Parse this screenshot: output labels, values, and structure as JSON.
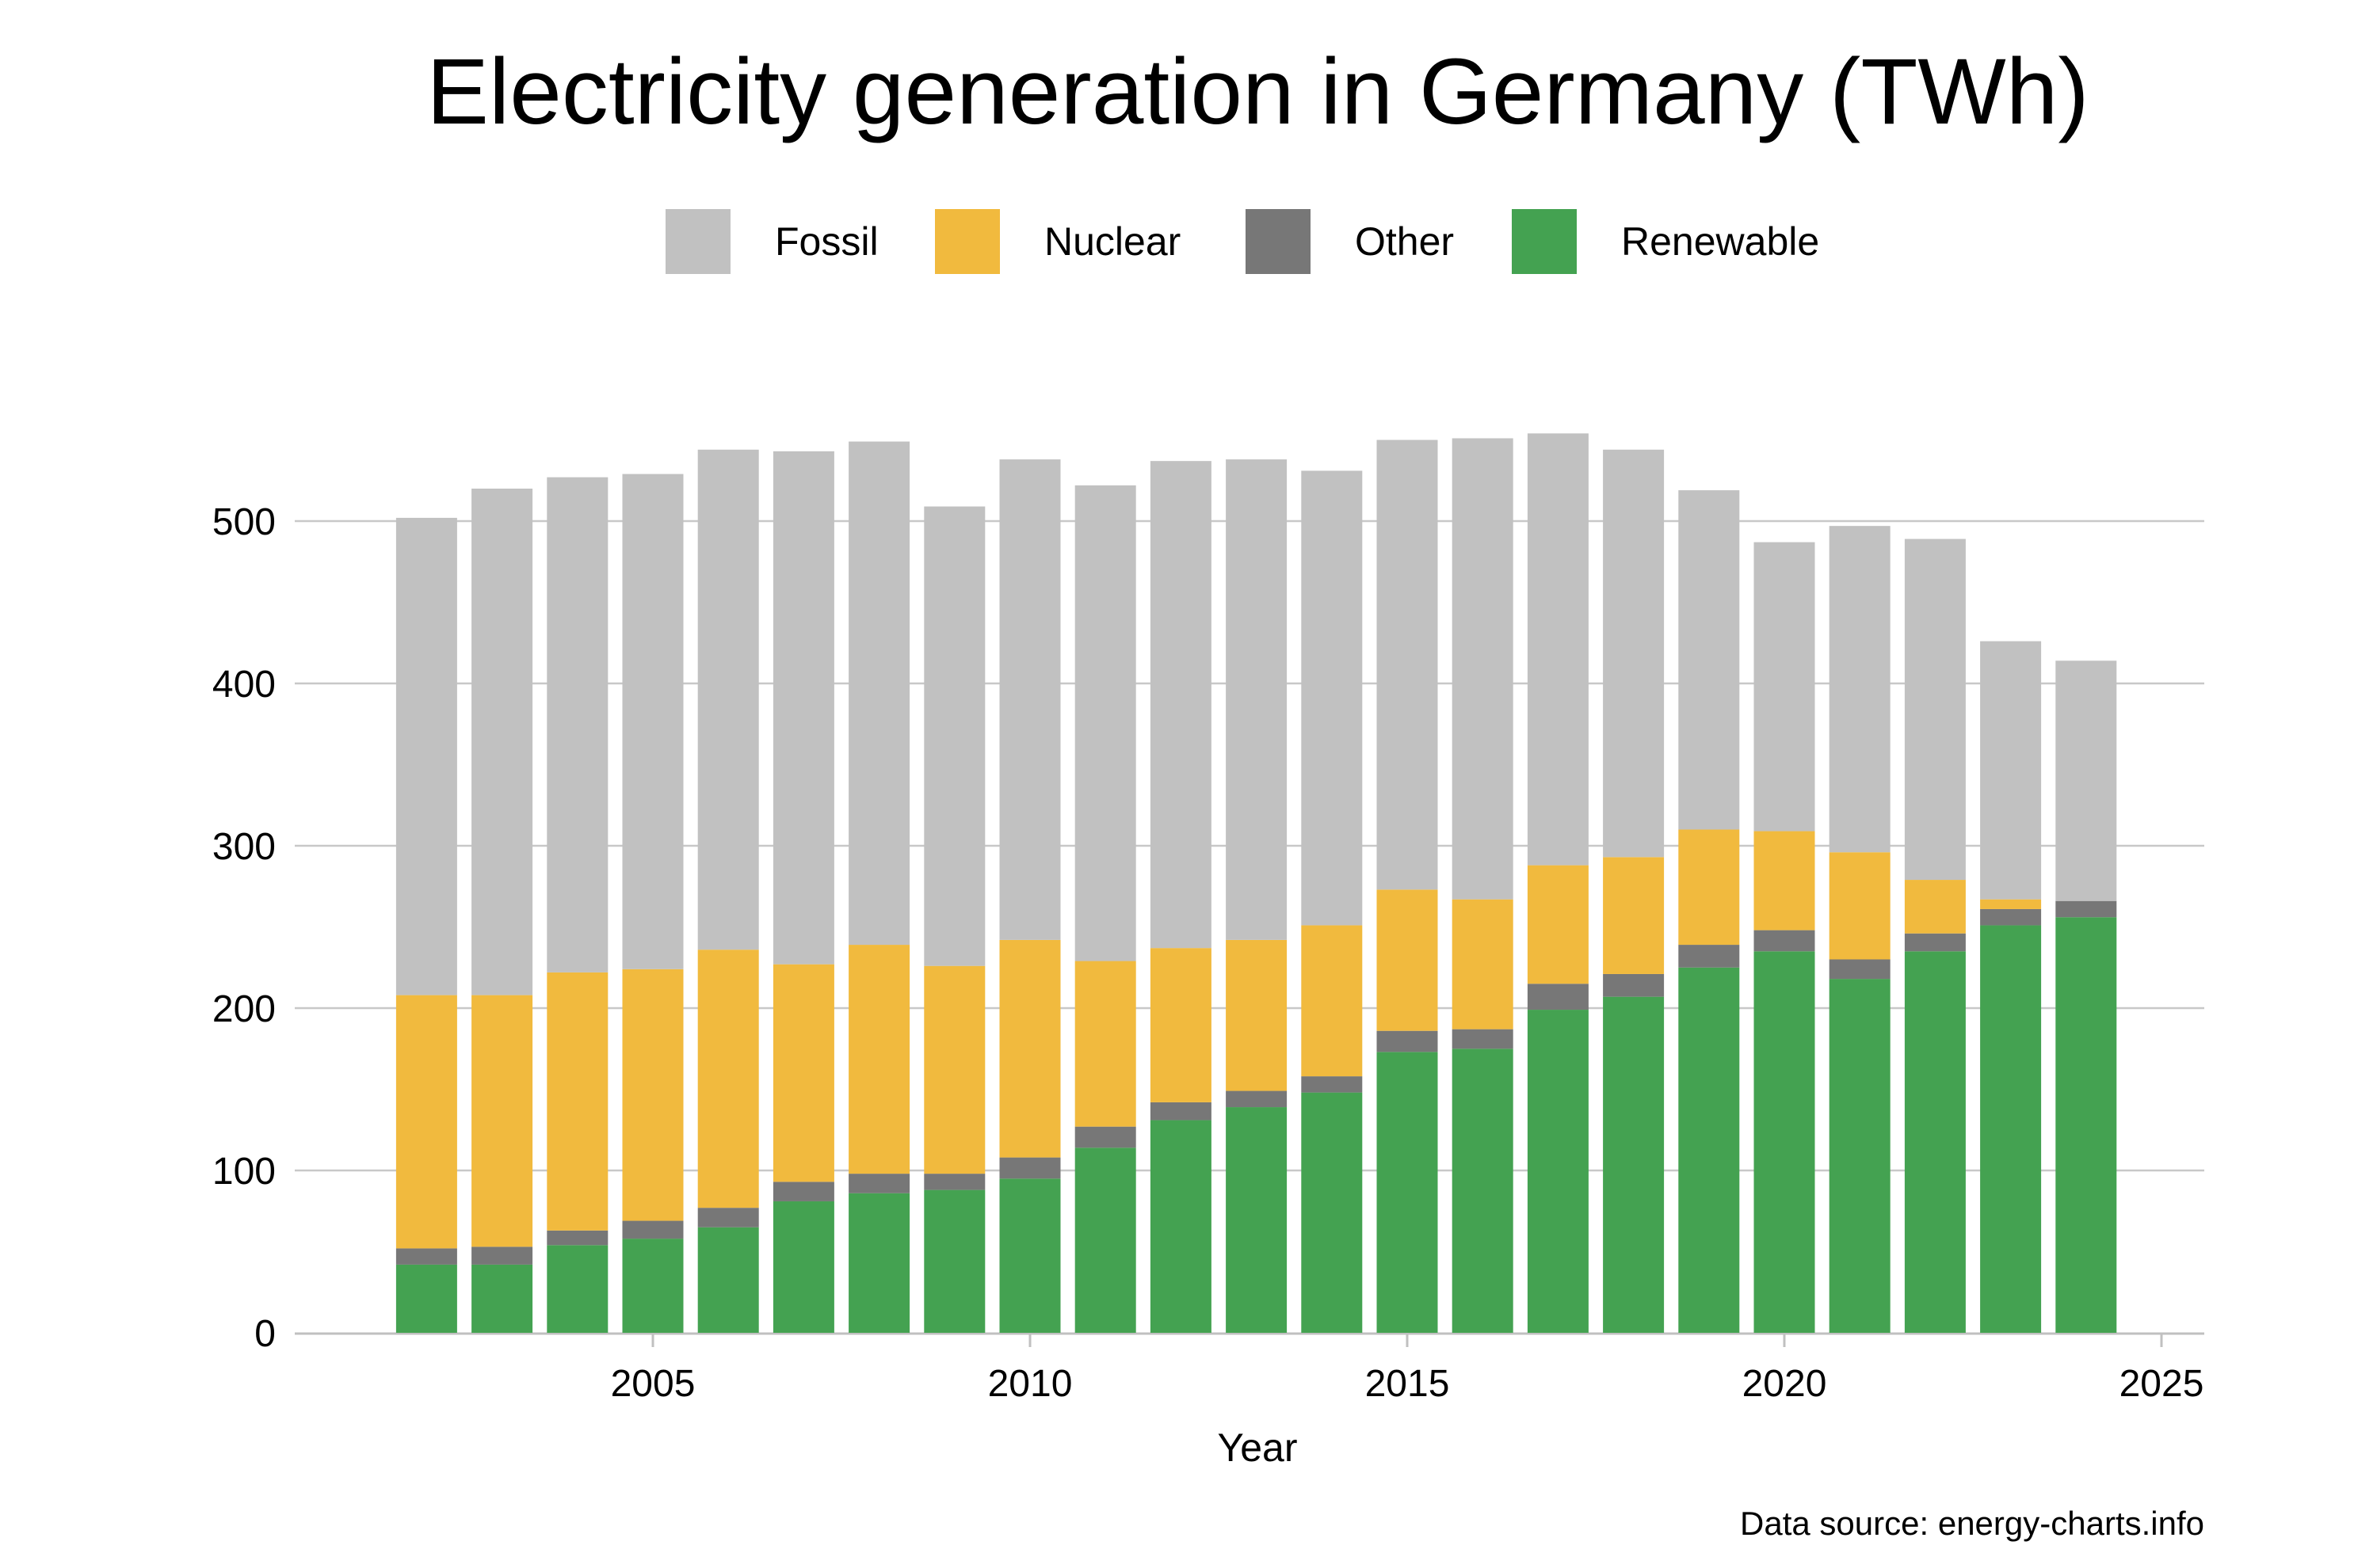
{
  "chart_data": {
    "type": "bar",
    "stacked": true,
    "title": "Electricity generation in Germany (TWh)",
    "xlabel": "Year",
    "ylabel": "",
    "xlim": [
      2001,
      2025.5
    ],
    "ylim": [
      0,
      560
    ],
    "x_ticks": [
      2005,
      2010,
      2015,
      2020,
      2025
    ],
    "y_ticks": [
      0,
      100,
      200,
      300,
      400,
      500
    ],
    "grid": "horizontal",
    "legend_position": "top",
    "categories": [
      2002,
      2003,
      2004,
      2005,
      2006,
      2007,
      2008,
      2009,
      2010,
      2011,
      2012,
      2013,
      2014,
      2015,
      2016,
      2017,
      2018,
      2019,
      2020,
      2021,
      2022,
      2023,
      2024
    ],
    "series": [
      {
        "name": "Renewable",
        "color": "#44a251",
        "values": [
          42,
          42,
          54,
          58,
          65,
          81,
          86,
          88,
          95,
          114,
          131,
          139,
          148,
          173,
          175,
          199,
          207,
          225,
          235,
          218,
          235,
          251,
          256
        ]
      },
      {
        "name": "Other",
        "color": "#777777",
        "values": [
          10,
          11,
          9,
          11,
          12,
          12,
          12,
          10,
          13,
          13,
          11,
          10,
          10,
          13,
          12,
          16,
          14,
          14,
          13,
          12,
          11,
          10,
          10
        ]
      },
      {
        "name": "Nuclear",
        "color": "#f1ba3e",
        "values": [
          156,
          155,
          159,
          155,
          159,
          134,
          141,
          128,
          134,
          102,
          95,
          93,
          93,
          87,
          80,
          73,
          72,
          71,
          61,
          66,
          33,
          6,
          0
        ]
      },
      {
        "name": "Fossil",
        "color": "#c1c1c1",
        "values": [
          294,
          312,
          305,
          305,
          308,
          316,
          310,
          283,
          296,
          293,
          300,
          296,
          280,
          277,
          284,
          266,
          251,
          209,
          178,
          201,
          210,
          159,
          148
        ]
      }
    ],
    "legend_order": [
      "Fossil",
      "Nuclear",
      "Other",
      "Renewable"
    ],
    "source": "Data source: energy-charts.info"
  }
}
